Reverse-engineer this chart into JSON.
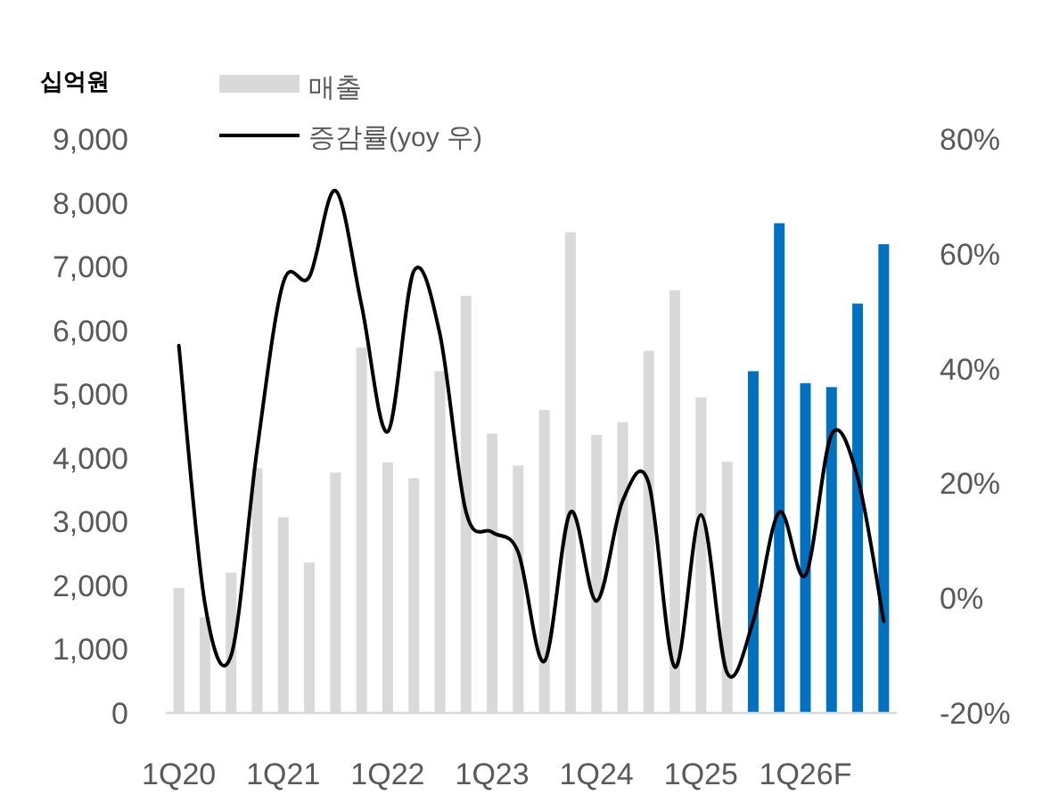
{
  "chart_data": {
    "type": "bar",
    "ylabel": "십억원",
    "legend": "top left",
    "grid": false,
    "marker": "none",
    "tick_labels": "xy",
    "categories": [
      "1Q20",
      null,
      null,
      null,
      "1Q21",
      null,
      null,
      null,
      "1Q22",
      null,
      null,
      null,
      "1Q23",
      null,
      null,
      null,
      "1Q24",
      null,
      null,
      null,
      "1Q25",
      null,
      null,
      null,
      "1Q26F",
      null,
      null,
      null
    ],
    "ylim": [
      0,
      9000
    ],
    "yticks": [
      0,
      {
        "value": 1000,
        "label": "1,000"
      },
      {
        "value": 2000,
        "label": "2,000"
      },
      {
        "value": 3000,
        "label": "3,000"
      },
      {
        "value": 4000,
        "label": "4,000"
      },
      {
        "value": 5000,
        "label": "5,000"
      },
      {
        "value": 6000,
        "label": "6,000"
      },
      {
        "value": 7000,
        "label": "7,000"
      },
      {
        "value": 8000,
        "label": "8,000"
      },
      {
        "value": 9000,
        "label": "9,000"
      }
    ],
    "y2lim": [
      -20,
      80
    ],
    "y2ticks": [
      {
        "value": -20,
        "label": "-20%"
      },
      {
        "value": 0,
        "label": "0%"
      },
      {
        "value": 20,
        "label": "20%"
      },
      {
        "value": 40,
        "label": "40%"
      },
      {
        "value": 60,
        "label": "60%"
      },
      {
        "value": 80,
        "label": "80%"
      }
    ],
    "series": [
      {
        "name": "매출",
        "color": "#d9d9d9",
        "colors": [
          "#d9d9d9",
          "#d9d9d9",
          "#d9d9d9",
          "#d9d9d9",
          "#d9d9d9",
          "#d9d9d9",
          "#d9d9d9",
          "#d9d9d9",
          "#d9d9d9",
          "#d9d9d9",
          "#d9d9d9",
          "#d9d9d9",
          "#d9d9d9",
          "#d9d9d9",
          "#d9d9d9",
          "#d9d9d9",
          "#d9d9d9",
          "#d9d9d9",
          "#d9d9d9",
          "#d9d9d9",
          "#d9d9d9",
          "#d9d9d9",
          "#0070c0",
          "#0070c0",
          "#0070c0",
          "#0070c0",
          "#0070c0",
          "#0070c0"
        ],
        "values": [
          1960,
          1500,
          2200,
          3840,
          3070,
          2360,
          3770,
          5730,
          3930,
          3680,
          5360,
          6540,
          4380,
          3880,
          4750,
          7540,
          4360,
          4560,
          5680,
          6630,
          4950,
          3940,
          5360,
          7680,
          5170,
          5110,
          6420,
          7350
        ]
      },
      {
        "name": "증감률(yoy 우)",
        "type": "line",
        "axis": "y2",
        "color": "#000000",
        "line_style": "solid",
        "values": [
          44,
          -1,
          -10,
          26,
          55,
          56,
          71,
          51,
          29,
          57,
          46,
          15,
          11.5,
          8,
          -11,
          15,
          -0.5,
          17,
          20,
          -12,
          14.5,
          -13,
          -4,
          15,
          4,
          28.5,
          21,
          -4
        ]
      }
    ]
  }
}
